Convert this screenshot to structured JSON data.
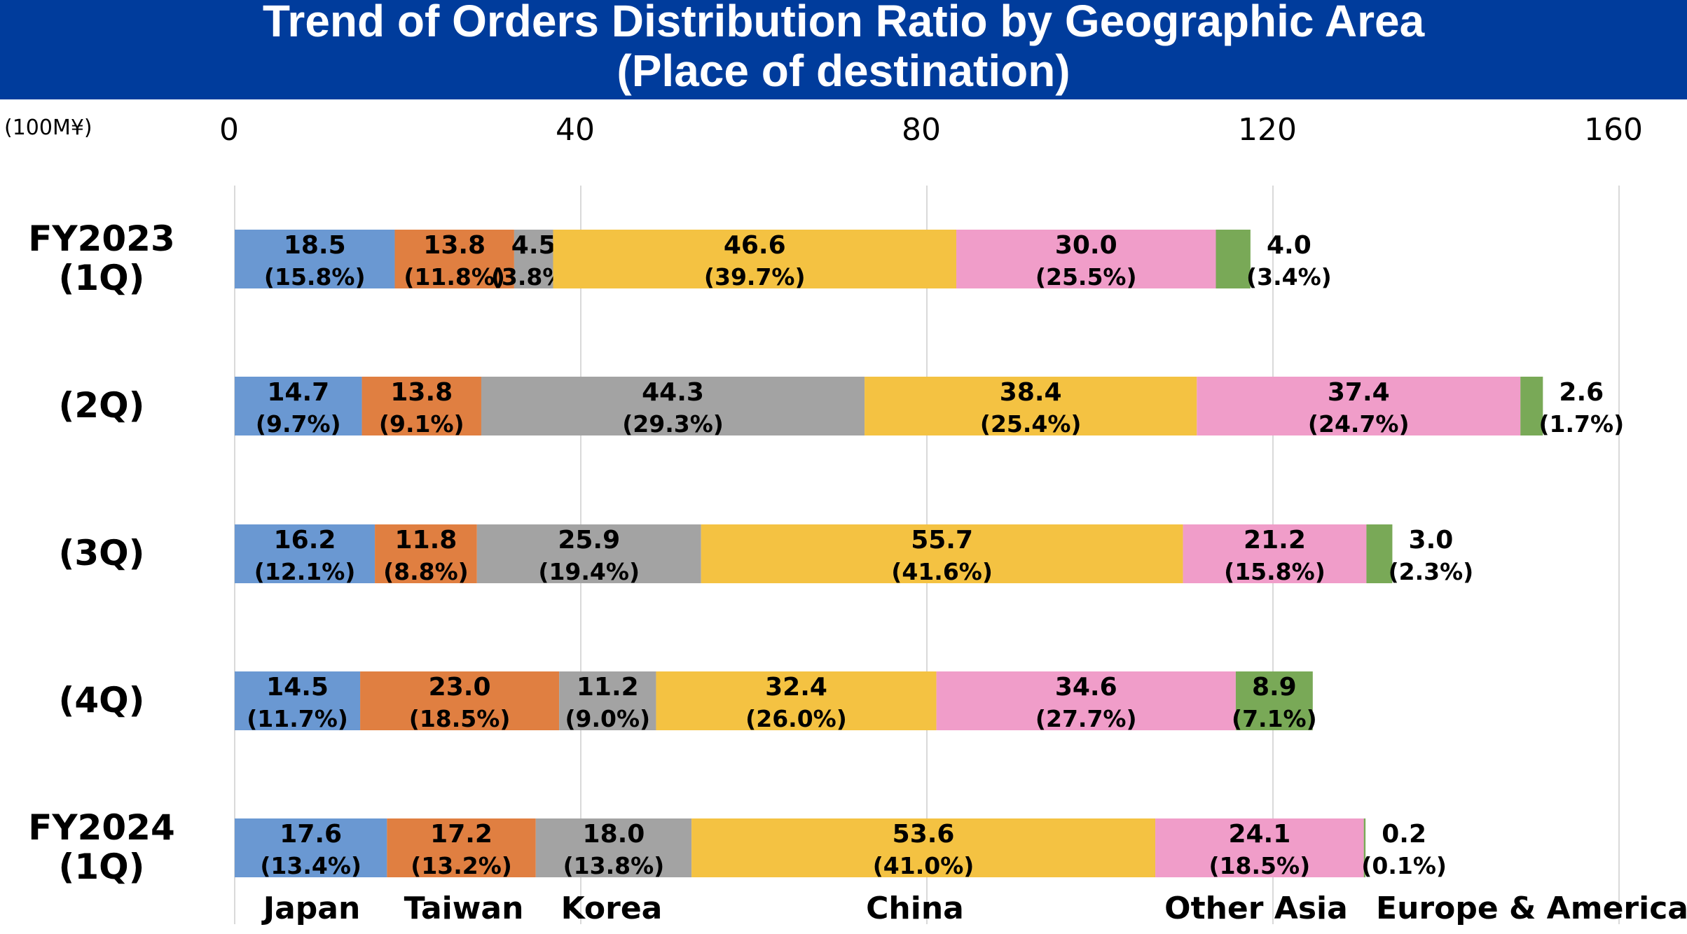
{
  "header": {
    "title_line1": "Trend of Orders Distribution Ratio by Geographic Area",
    "title_line2": "(Place of destination)"
  },
  "colors": {
    "title_bar": "#003c9c",
    "Japan": "#6a98d2",
    "Taiwan": "#e07f41",
    "Korea": "#a3a3a3",
    "China": "#f4c242",
    "Other Asia": "#f09dc9",
    "Europe & America": "#79a957"
  },
  "chart_data": {
    "type": "bar",
    "orientation": "horizontal",
    "stacked": true,
    "unit": "(100M¥)",
    "xlim": [
      0,
      160
    ],
    "xticks": [
      0,
      40,
      80,
      120,
      160
    ],
    "grid": true,
    "legend_position": "bottom",
    "categories": [
      [
        "FY2023",
        "(1Q)"
      ],
      [
        "(2Q)"
      ],
      [
        "(3Q)"
      ],
      [
        "(4Q)"
      ],
      [
        "FY2024",
        "(1Q)"
      ]
    ],
    "series": [
      {
        "name": "Japan",
        "values": [
          18.5,
          14.7,
          16.2,
          14.5,
          17.6
        ],
        "labels": [
          "18.5",
          "14.7",
          "16.2",
          "14.5",
          "17.6"
        ],
        "pct": [
          "(15.8%)",
          "(9.7%)",
          "(12.1%)",
          "(11.7%)",
          "(13.4%)"
        ]
      },
      {
        "name": "Taiwan",
        "values": [
          13.8,
          13.8,
          11.8,
          23.0,
          17.2
        ],
        "labels": [
          "13.8",
          "13.8",
          "11.8",
          "23.0",
          "17.2"
        ],
        "pct": [
          "(11.8%)",
          "(9.1%)",
          "(8.8%)",
          "(18.5%)",
          "(13.2%)"
        ]
      },
      {
        "name": "Korea",
        "values": [
          4.5,
          44.3,
          25.9,
          11.2,
          18.0
        ],
        "labels": [
          "4.5",
          "44.3",
          "25.9",
          "11.2",
          "18.0"
        ],
        "pct": [
          "(3.8%)",
          "(29.3%)",
          "(19.4%)",
          "(9.0%)",
          "(13.8%)"
        ]
      },
      {
        "name": "China",
        "values": [
          46.6,
          38.4,
          55.7,
          32.4,
          53.6
        ],
        "labels": [
          "46.6",
          "38.4",
          "55.7",
          "32.4",
          "53.6"
        ],
        "pct": [
          "(39.7%)",
          "(25.4%)",
          "(41.6%)",
          "(26.0%)",
          "(41.0%)"
        ]
      },
      {
        "name": "Other Asia",
        "values": [
          30.0,
          37.4,
          21.2,
          34.6,
          24.1
        ],
        "labels": [
          "30.0",
          "37.4",
          "21.2",
          "34.6",
          "24.1"
        ],
        "pct": [
          "(25.5%)",
          "(24.7%)",
          "(15.8%)",
          "(27.7%)",
          "(18.5%)"
        ]
      },
      {
        "name": "Europe & America",
        "values": [
          4.0,
          2.6,
          3.0,
          8.9,
          0.2
        ],
        "labels": [
          "4.0",
          "2.6",
          "3.0",
          "8.9",
          "0.2"
        ],
        "pct": [
          "(3.4%)",
          "(1.7%)",
          "(2.3%)",
          "(7.1%)",
          "(0.1%)"
        ]
      }
    ]
  }
}
